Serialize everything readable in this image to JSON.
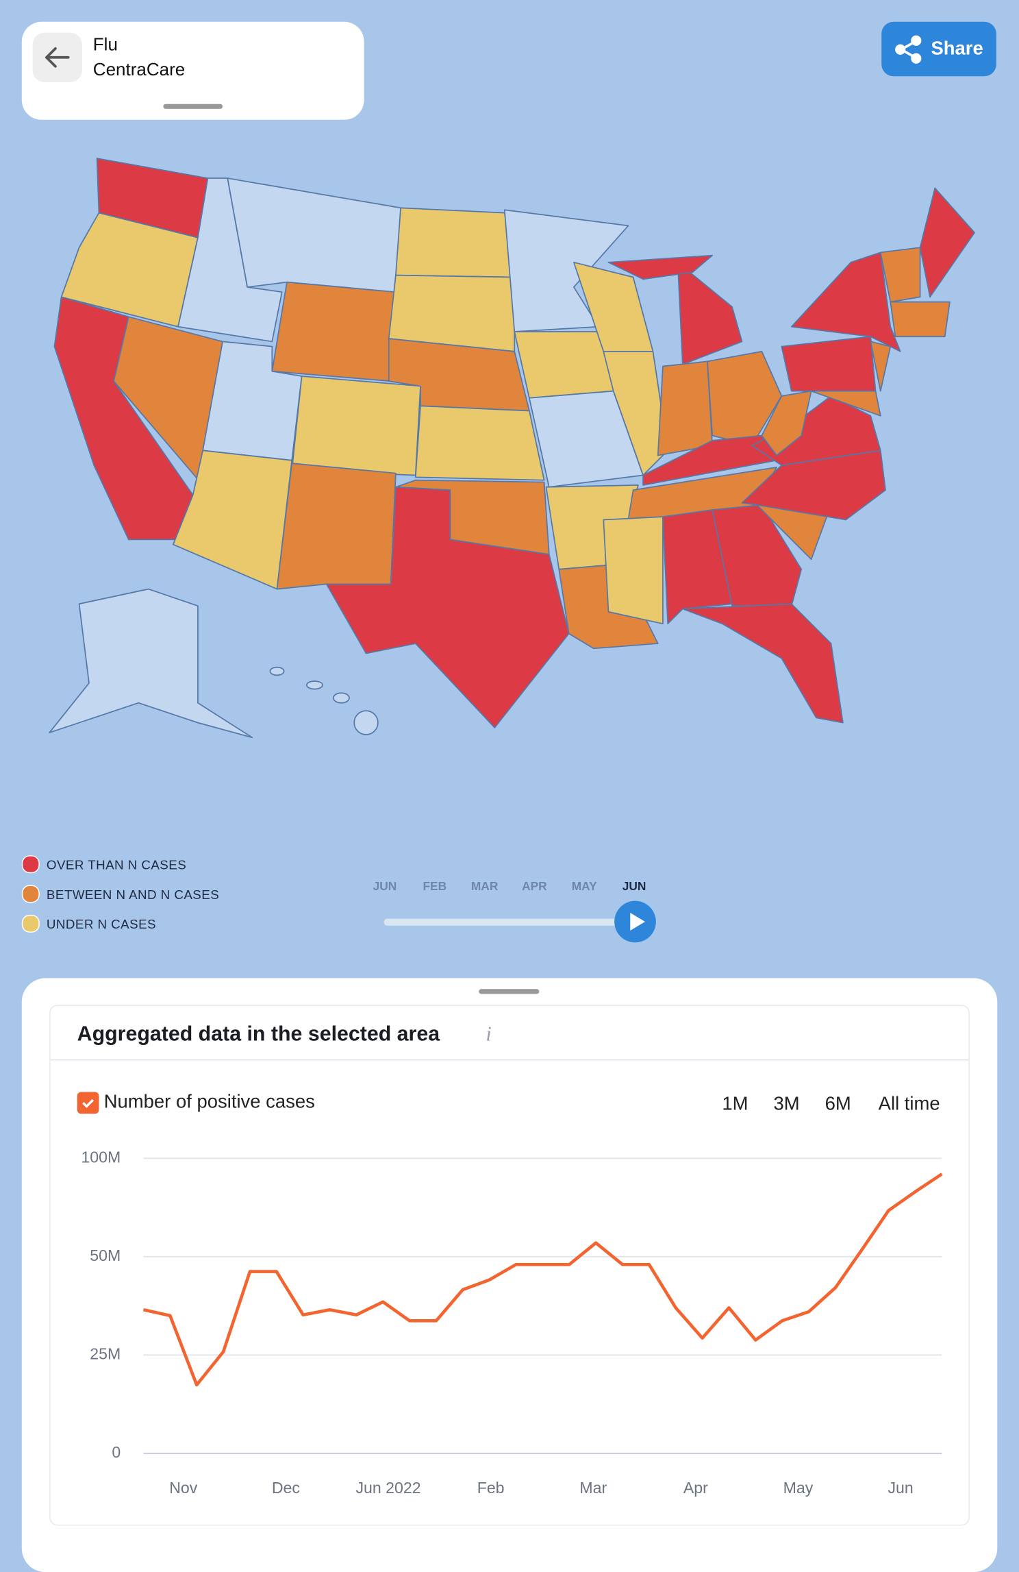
{
  "header": {
    "title": "Flu",
    "subtitle": "CentraCare",
    "share": "Share"
  },
  "map": {
    "legend": [
      {
        "label": "OVER THAN N CASES",
        "color": "#dc3a44"
      },
      {
        "label": "BETWEEN N AND N CASES",
        "color": "#e2853c"
      },
      {
        "label": "UNDER N CASES",
        "color": "#e9c96b"
      }
    ]
  },
  "timeline": {
    "labels": [
      "JUN",
      "FEB",
      "MAR",
      "APR",
      "MAY",
      "JUN"
    ],
    "active": 5
  },
  "panel": {
    "title": "Aggregated data in the selected area",
    "ranges": [
      "1M",
      "3M",
      "6M",
      "All time"
    ]
  },
  "chart_data": {
    "type": "line",
    "x": [
      0,
      1,
      2,
      3,
      4,
      5,
      6,
      7,
      8,
      9,
      10,
      11,
      12,
      13,
      14,
      15,
      16,
      17,
      18,
      19,
      20,
      21,
      22,
      23,
      24,
      25,
      26,
      27,
      28,
      29,
      30
    ],
    "xlim": [
      0,
      30
    ],
    "xticks": [
      {
        "value": 1.5,
        "label": "Nov"
      },
      {
        "value": 5.35,
        "label": "Dec"
      },
      {
        "value": 9.2,
        "label": "Jun 2022"
      },
      {
        "value": 13.05,
        "label": "Feb"
      },
      {
        "value": 16.9,
        "label": "Mar"
      },
      {
        "value": 20.75,
        "label": "Apr"
      },
      {
        "value": 24.6,
        "label": "May"
      },
      {
        "value": 28.45,
        "label": "Jun"
      }
    ],
    "ylim": [
      0,
      100000000
    ],
    "yticks": [
      {
        "value": 0,
        "label": "0"
      },
      {
        "value": 25000000,
        "label": "25M"
      },
      {
        "value": 50000000,
        "label": "50M"
      },
      {
        "value": 100000000,
        "label": "100M"
      }
    ],
    "grid": true,
    "series": [
      {
        "name": "Number of positive cases",
        "color": "#f26430",
        "values": [
          36500000,
          35000000,
          17400000,
          25800000,
          46200000,
          46200000,
          35200000,
          36500000,
          35200000,
          38500000,
          33700000,
          33700000,
          41600000,
          44100000,
          48000000,
          48000000,
          48000000,
          57000000,
          48000000,
          48000000,
          37000000,
          29300000,
          37000000,
          28800000,
          33700000,
          36000000,
          42100000,
          53600000,
          73500000,
          83000000,
          92000000
        ]
      }
    ]
  }
}
